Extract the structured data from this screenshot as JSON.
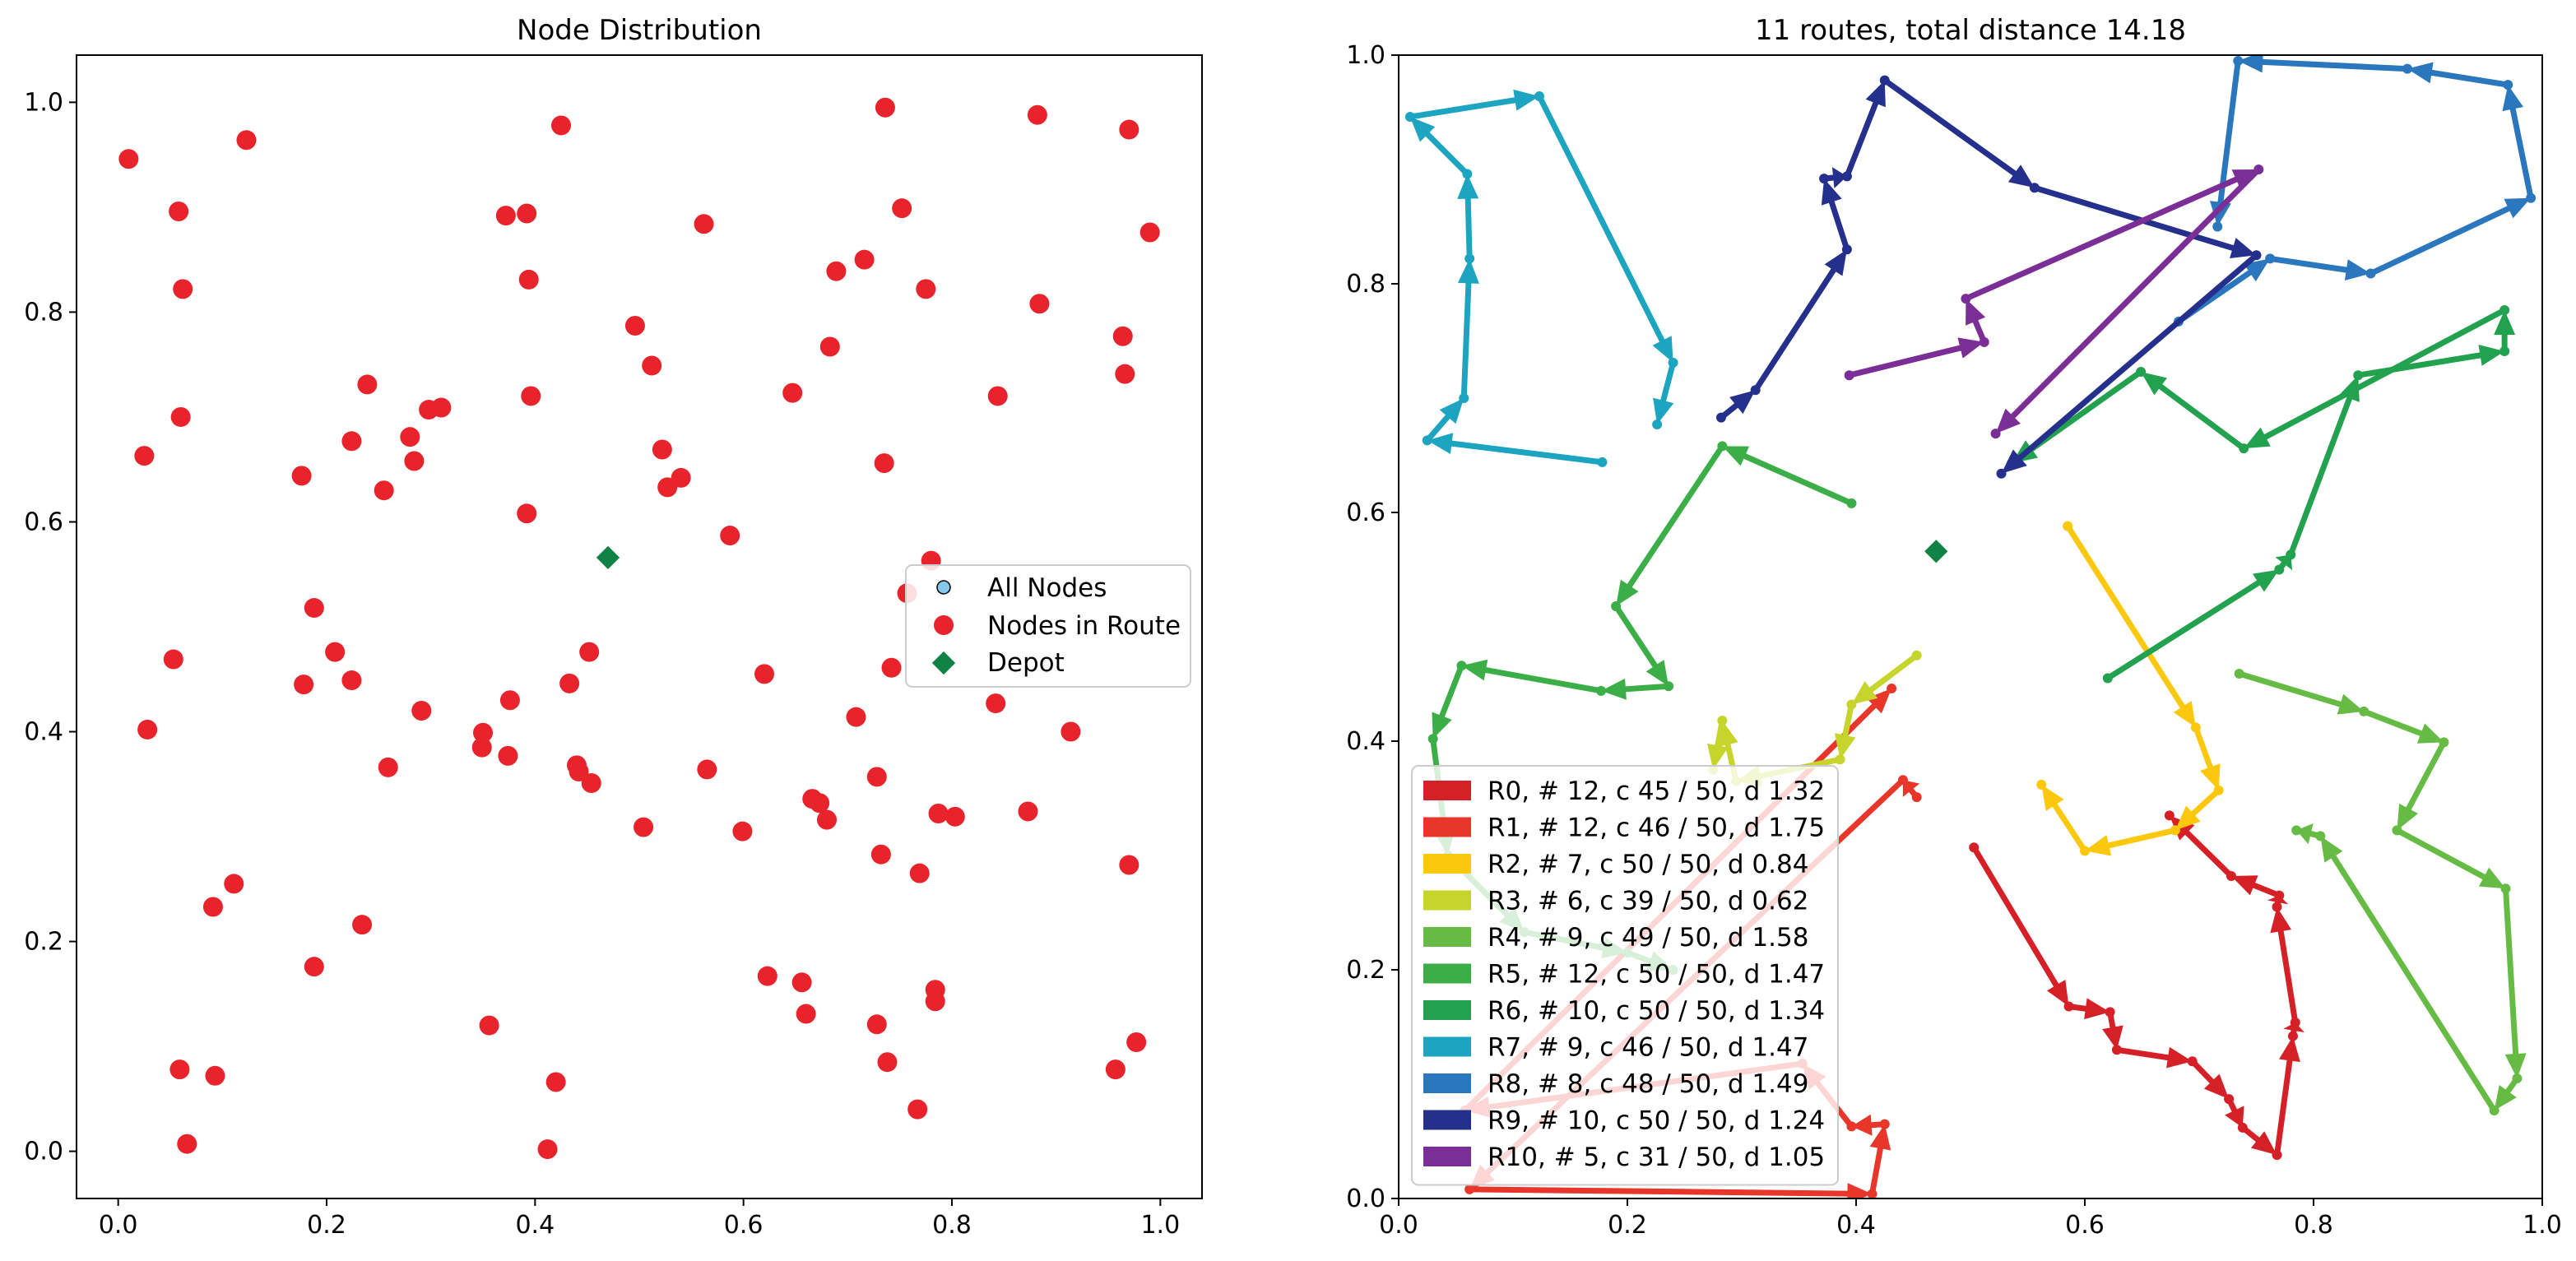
{
  "chart_data": [
    {
      "type": "scatter",
      "title": "Node Distribution",
      "xlim": [
        -0.04,
        1.04
      ],
      "ylim": [
        -0.045,
        1.045
      ],
      "xticks": [
        "0.0",
        "0.2",
        "0.4",
        "0.6",
        "0.8",
        "1.0"
      ],
      "yticks": [
        "0.0",
        "0.2",
        "0.4",
        "0.6",
        "0.8",
        "1.0"
      ],
      "legend": {
        "placement": "center-right",
        "entries": [
          "All Nodes",
          "Nodes in Route",
          "Depot"
        ]
      },
      "colors": {
        "nodes": "#e8232b",
        "depot": "#108245",
        "all_nodes": "#86c8e8"
      },
      "depot": [
        0.47,
        0.566
      ],
      "nodes": [
        [
          0.01,
          0.946
        ],
        [
          0.058,
          0.896
        ],
        [
          0.062,
          0.822
        ],
        [
          0.06,
          0.7
        ],
        [
          0.025,
          0.663
        ],
        [
          0.123,
          0.964
        ],
        [
          0.028,
          0.402
        ],
        [
          0.053,
          0.469
        ],
        [
          0.091,
          0.233
        ],
        [
          0.111,
          0.255
        ],
        [
          0.059,
          0.078
        ],
        [
          0.093,
          0.072
        ],
        [
          0.066,
          0.007
        ],
        [
          0.176,
          0.644
        ],
        [
          0.224,
          0.677
        ],
        [
          0.239,
          0.731
        ],
        [
          0.255,
          0.63
        ],
        [
          0.28,
          0.681
        ],
        [
          0.284,
          0.658
        ],
        [
          0.298,
          0.707
        ],
        [
          0.31,
          0.709
        ],
        [
          0.188,
          0.518
        ],
        [
          0.208,
          0.476
        ],
        [
          0.178,
          0.445
        ],
        [
          0.224,
          0.449
        ],
        [
          0.291,
          0.42
        ],
        [
          0.259,
          0.366
        ],
        [
          0.188,
          0.176
        ],
        [
          0.234,
          0.216
        ],
        [
          0.372,
          0.892
        ],
        [
          0.392,
          0.894
        ],
        [
          0.394,
          0.831
        ],
        [
          0.396,
          0.72
        ],
        [
          0.425,
          0.978
        ],
        [
          0.392,
          0.608
        ],
        [
          0.376,
          0.43
        ],
        [
          0.374,
          0.377
        ],
        [
          0.35,
          0.399
        ],
        [
          0.349,
          0.385
        ],
        [
          0.433,
          0.446
        ],
        [
          0.452,
          0.476
        ],
        [
          0.44,
          0.368
        ],
        [
          0.442,
          0.362
        ],
        [
          0.454,
          0.351
        ],
        [
          0.356,
          0.12
        ],
        [
          0.42,
          0.066
        ],
        [
          0.412,
          0.002
        ],
        [
          0.496,
          0.787
        ],
        [
          0.512,
          0.749
        ],
        [
          0.522,
          0.669
        ],
        [
          0.527,
          0.633
        ],
        [
          0.54,
          0.642
        ],
        [
          0.562,
          0.884
        ],
        [
          0.587,
          0.587
        ],
        [
          0.504,
          0.309
        ],
        [
          0.565,
          0.364
        ],
        [
          0.599,
          0.305
        ],
        [
          0.62,
          0.455
        ],
        [
          0.623,
          0.167
        ],
        [
          0.647,
          0.723
        ],
        [
          0.656,
          0.161
        ],
        [
          0.66,
          0.131
        ],
        [
          0.666,
          0.336
        ],
        [
          0.673,
          0.332
        ],
        [
          0.68,
          0.316
        ],
        [
          0.683,
          0.767
        ],
        [
          0.689,
          0.839
        ],
        [
          0.716,
          0.85
        ],
        [
          0.708,
          0.414
        ],
        [
          0.728,
          0.357
        ],
        [
          0.732,
          0.283
        ],
        [
          0.728,
          0.121
        ],
        [
          0.738,
          0.085
        ],
        [
          0.736,
          0.995
        ],
        [
          0.735,
          0.656
        ],
        [
          0.752,
          0.899
        ],
        [
          0.775,
          0.822
        ],
        [
          0.757,
          0.532
        ],
        [
          0.78,
          0.563
        ],
        [
          0.742,
          0.461
        ],
        [
          0.769,
          0.265
        ],
        [
          0.784,
          0.154
        ],
        [
          0.784,
          0.143
        ],
        [
          0.787,
          0.322
        ],
        [
          0.803,
          0.319
        ],
        [
          0.767,
          0.04
        ],
        [
          0.844,
          0.72
        ],
        [
          0.882,
          0.988
        ],
        [
          0.884,
          0.808
        ],
        [
          0.842,
          0.427
        ],
        [
          0.873,
          0.324
        ],
        [
          0.914,
          0.4
        ],
        [
          0.964,
          0.777
        ],
        [
          0.966,
          0.741
        ],
        [
          0.97,
          0.974
        ],
        [
          0.99,
          0.876
        ],
        [
          0.97,
          0.273
        ],
        [
          0.957,
          0.078
        ],
        [
          0.977,
          0.104
        ]
      ]
    },
    {
      "type": "line",
      "title": "11 routes, total distance 14.18",
      "xlim": [
        0.0,
        1.0
      ],
      "ylim": [
        0.0,
        1.0
      ],
      "xticks": [
        "0.0",
        "0.2",
        "0.4",
        "0.6",
        "0.8",
        "1.0"
      ],
      "yticks": [
        "0.0",
        "0.2",
        "0.4",
        "0.6",
        "0.8",
        "1.0"
      ],
      "legend": {
        "placement": "bottom-left"
      },
      "depot": [
        0.47,
        0.566
      ],
      "depot_color": "#108245",
      "series": [
        {
          "name": "R0, # 12, c 45 / 50, d 1.32",
          "color": "#d62027",
          "points": [
            [
              0.503,
              0.307
            ],
            [
              0.586,
              0.168
            ],
            [
              0.622,
              0.163
            ],
            [
              0.628,
              0.13
            ],
            [
              0.694,
              0.12
            ],
            [
              0.726,
              0.087
            ],
            [
              0.738,
              0.062
            ],
            [
              0.768,
              0.038
            ],
            [
              0.782,
              0.142
            ],
            [
              0.784,
              0.154
            ],
            [
              0.768,
              0.255
            ],
            [
              0.77,
              0.265
            ],
            [
              0.728,
              0.282
            ],
            [
              0.674,
              0.335
            ]
          ]
        },
        {
          "name": "R1, # 12, c 46 / 50, d 1.75",
          "color": "#e8362a",
          "points": [
            [
              0.453,
              0.351
            ],
            [
              0.441,
              0.366
            ],
            [
              0.062,
              0.008
            ],
            [
              0.414,
              0.004
            ],
            [
              0.425,
              0.065
            ],
            [
              0.396,
              0.063
            ],
            [
              0.353,
              0.118
            ],
            [
              0.058,
              0.077
            ],
            [
              0.431,
              0.446
            ]
          ]
        },
        {
          "name": "R2, # 7, c 50 / 50, d 0.84",
          "color": "#fcc80e",
          "points": [
            [
              0.585,
              0.588
            ],
            [
              0.697,
              0.412
            ],
            [
              0.717,
              0.357
            ],
            [
              0.679,
              0.322
            ],
            [
              0.6,
              0.304
            ],
            [
              0.562,
              0.362
            ]
          ]
        },
        {
          "name": "R3, # 6, c 39 / 50, d 0.62",
          "color": "#c5d52c",
          "points": [
            [
              0.453,
              0.475
            ],
            [
              0.396,
              0.432
            ],
            [
              0.386,
              0.384
            ],
            [
              0.295,
              0.365
            ],
            [
              0.283,
              0.418
            ],
            [
              0.275,
              0.375
            ]
          ]
        },
        {
          "name": "R4, # 9, c 49 / 50, d 1.58",
          "color": "#66bb44",
          "points": [
            [
              0.735,
              0.459
            ],
            [
              0.844,
              0.426
            ],
            [
              0.914,
              0.399
            ],
            [
              0.873,
              0.322
            ],
            [
              0.968,
              0.271
            ],
            [
              0.978,
              0.105
            ],
            [
              0.958,
              0.077
            ],
            [
              0.806,
              0.317
            ],
            [
              0.785,
              0.322
            ]
          ]
        },
        {
          "name": "R5, # 12, c 50 / 50, d 1.47",
          "color": "#3cae48",
          "points": [
            [
              0.396,
              0.608
            ],
            [
              0.283,
              0.658
            ],
            [
              0.19,
              0.518
            ],
            [
              0.236,
              0.448
            ],
            [
              0.177,
              0.444
            ],
            [
              0.055,
              0.466
            ],
            [
              0.03,
              0.402
            ],
            [
              0.043,
              0.3
            ],
            [
              0.11,
              0.233
            ],
            [
              0.2,
              0.215
            ],
            [
              0.24,
              0.2
            ]
          ]
        },
        {
          "name": "R6, # 10, c 50 / 50, d 1.34",
          "color": "#22a14f",
          "points": [
            [
              0.62,
              0.455
            ],
            [
              0.77,
              0.55
            ],
            [
              0.78,
              0.563
            ],
            [
              0.839,
              0.72
            ],
            [
              0.967,
              0.741
            ],
            [
              0.967,
              0.777
            ],
            [
              0.739,
              0.656
            ],
            [
              0.649,
              0.723
            ],
            [
              0.536,
              0.643
            ]
          ]
        },
        {
          "name": "R7, # 9, c 46 / 50, d 1.47",
          "color": "#1da4c0",
          "points": [
            [
              0.178,
              0.644
            ],
            [
              0.025,
              0.663
            ],
            [
              0.057,
              0.7
            ],
            [
              0.062,
              0.822
            ],
            [
              0.06,
              0.896
            ],
            [
              0.01,
              0.946
            ],
            [
              0.123,
              0.964
            ],
            [
              0.24,
              0.731
            ],
            [
              0.226,
              0.677
            ]
          ]
        },
        {
          "name": "R8, # 8, c 48 / 50, d 1.49",
          "color": "#2a77bd",
          "points": [
            [
              0.682,
              0.767
            ],
            [
              0.762,
              0.822
            ],
            [
              0.85,
              0.809
            ],
            [
              0.99,
              0.875
            ],
            [
              0.97,
              0.974
            ],
            [
              0.882,
              0.988
            ],
            [
              0.734,
              0.995
            ],
            [
              0.716,
              0.85
            ]
          ]
        },
        {
          "name": "R9, # 10, c 50 / 50, d 1.24",
          "color": "#25308c",
          "points": [
            [
              0.282,
              0.683
            ],
            [
              0.312,
              0.707
            ],
            [
              0.392,
              0.83
            ],
            [
              0.372,
              0.892
            ],
            [
              0.392,
              0.894
            ],
            [
              0.425,
              0.978
            ],
            [
              0.556,
              0.884
            ],
            [
              0.75,
              0.825
            ],
            [
              0.527,
              0.634
            ]
          ]
        },
        {
          "name": "R10, # 5, c 31 / 50, d 1.05",
          "color": "#7b2e96",
          "points": [
            [
              0.394,
              0.72
            ],
            [
              0.512,
              0.749
            ],
            [
              0.496,
              0.787
            ],
            [
              0.752,
              0.9
            ],
            [
              0.522,
              0.669
            ]
          ]
        }
      ]
    }
  ]
}
